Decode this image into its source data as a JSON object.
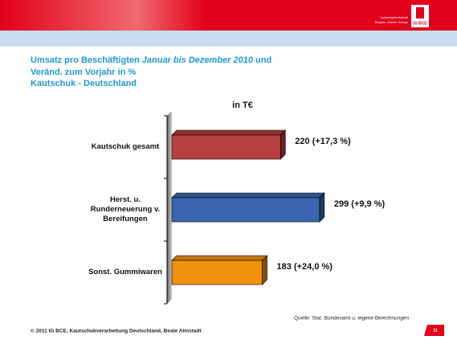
{
  "header": {
    "org_line1": "Industriegewerkschaft",
    "org_line2": "Bergbau, Chemie, Energie",
    "logo": "IG BCE"
  },
  "chart_data": {
    "type": "bar",
    "orientation": "horizontal",
    "title": "Umsatz pro Beschäftigten",
    "title_period": "Januar bis Dezember 2010",
    "title_end": "und",
    "subtitle": "Veränd. zum Vorjahr in %",
    "subtitle2": "Kautschuk - Deutschland",
    "unit_label": "in T€",
    "categories": [
      "Kautschuk gesamt",
      "Herst. u. Runderneuerung v. Bereifungen",
      "Sonst. Gummiwaren"
    ],
    "values": [
      220,
      299,
      183
    ],
    "value_labels": [
      "220 (+17,3 %)",
      "299 (+9,9 %)",
      "183 (+24,0 %)"
    ],
    "colors": [
      "#b5403d",
      "#3a66b0",
      "#f0920c"
    ],
    "xlim": [
      0,
      400
    ]
  },
  "footer": {
    "source": "Quelle: Stat. Bundesamt u. eigene Berechnungen",
    "copyright": "© 2011 IG BCE, Kautschukverarbeitung Deutschland, Beate Almstadt",
    "page": "11"
  }
}
